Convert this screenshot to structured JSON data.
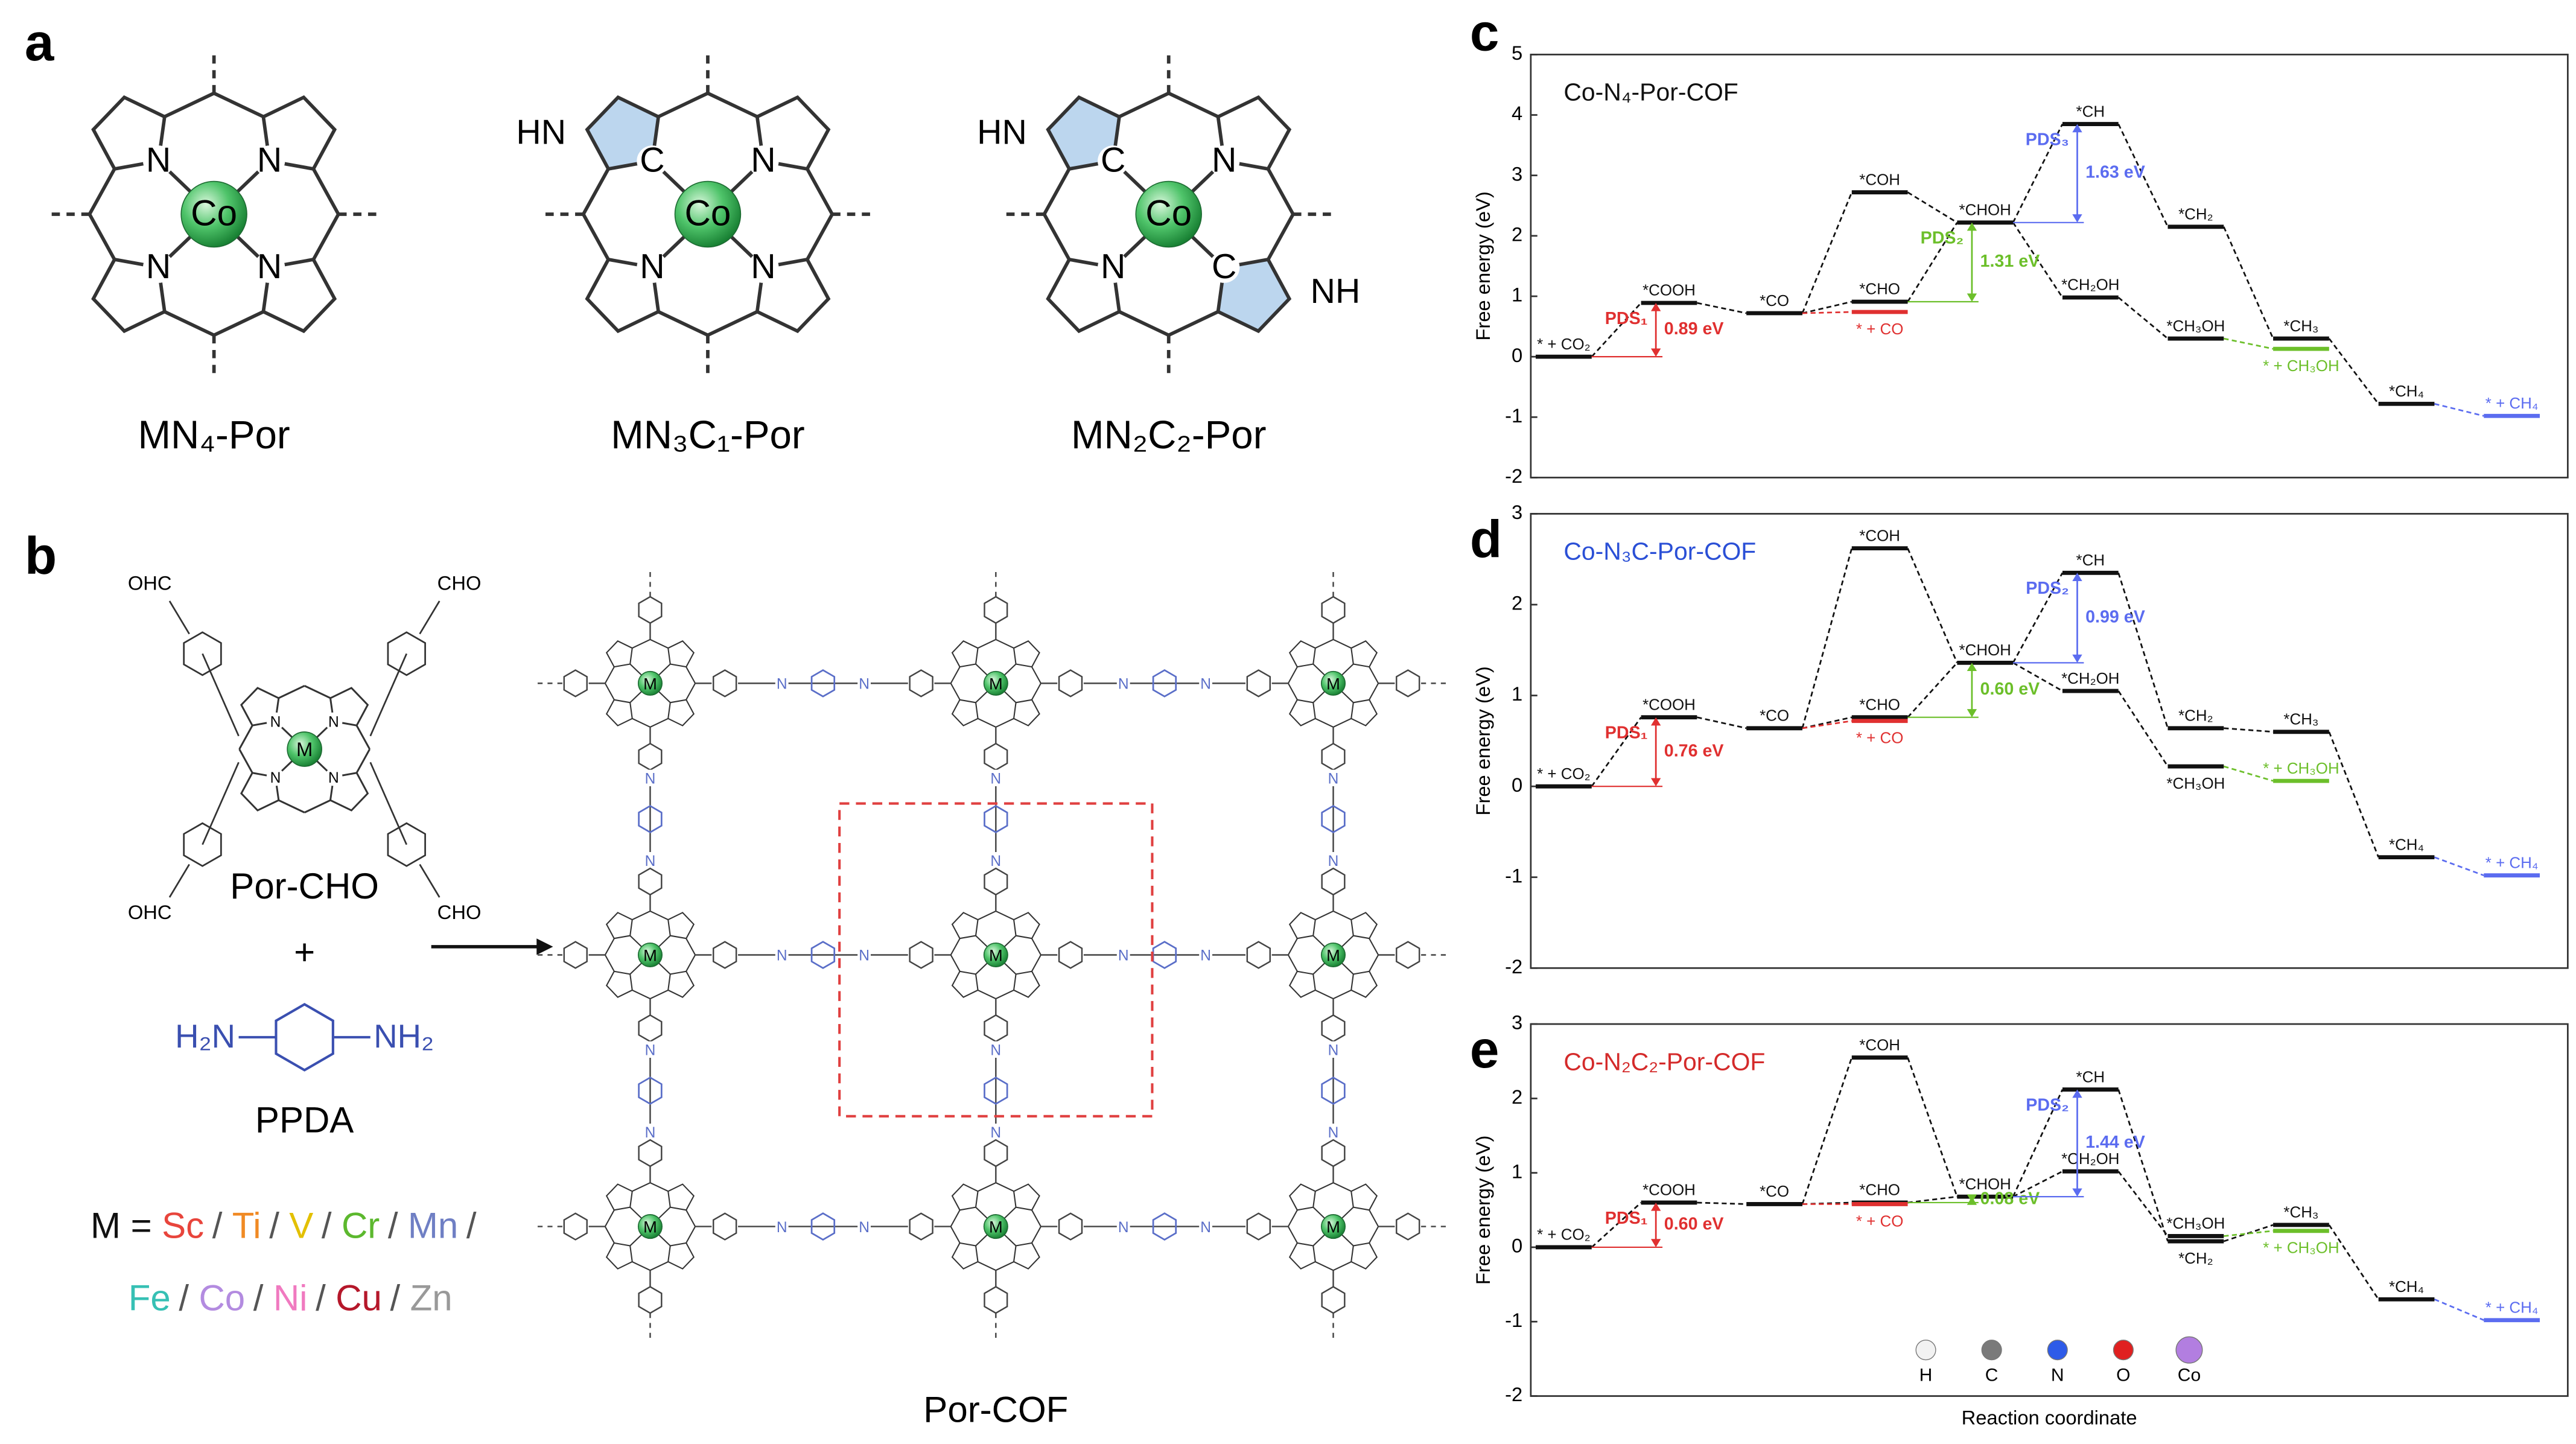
{
  "panel_labels": [
    "a",
    "b",
    "c",
    "d",
    "e"
  ],
  "panel_a": {
    "structures": [
      {
        "caption": "MN₄-Por",
        "center": "Co",
        "atoms": [
          "N",
          "N",
          "N",
          "N"
        ],
        "extras": []
      },
      {
        "caption": "MN₃C₁-Por",
        "center": "Co",
        "atoms": [
          "C",
          "N",
          "N",
          "N"
        ],
        "extras": [
          {
            "label": "HN",
            "corner": 0
          }
        ]
      },
      {
        "caption": "MN₂C₂-Por",
        "center": "Co",
        "atoms": [
          "C",
          "N",
          "N",
          "C"
        ],
        "extras": [
          {
            "label": "HN",
            "corner": 0
          },
          {
            "label": "NH",
            "corner": 3
          }
        ]
      }
    ]
  },
  "panel_b": {
    "monomer": {
      "name": "Por-CHO",
      "center": "M",
      "inner_atoms": [
        "N",
        "N",
        "N",
        "N"
      ],
      "groups": [
        "OHC",
        "CHO",
        "OHC",
        "CHO"
      ]
    },
    "plus": "+",
    "linker": {
      "name": "PPDA",
      "left": "H₂N",
      "right": "NH₂"
    },
    "metals": {
      "prefix": "M =",
      "separator": "/",
      "items": [
        {
          "label": "Sc",
          "color": "#e8453c"
        },
        {
          "label": "Ti",
          "color": "#f08a24"
        },
        {
          "label": "V",
          "color": "#e3c000"
        },
        {
          "label": "Cr",
          "color": "#5cb82e"
        },
        {
          "label": "Mn",
          "color": "#6f7fc4"
        },
        {
          "label": "Fe",
          "color": "#36c0b4"
        },
        {
          "label": "Co",
          "color": "#b38be0"
        },
        {
          "label": "Ni",
          "color": "#f07ac0"
        },
        {
          "label": "Cu",
          "color": "#b5172a"
        },
        {
          "label": "Zn",
          "color": "#999999"
        }
      ]
    },
    "product": {
      "name": "Por-COF",
      "node": "M",
      "linker_atom": "N"
    }
  },
  "chart_data": [
    {
      "type": "energy",
      "title": "Co-N₄-Por-COF",
      "title_color": "#111111",
      "ylabel": "Free energy (eV)",
      "ylim": [
        -2,
        5
      ],
      "yticks": [
        -2,
        -1,
        0,
        1,
        2,
        3,
        4,
        5
      ],
      "levels": [
        {
          "label": "* + CO₂",
          "value": 0,
          "step": 0,
          "color": "#111111"
        },
        {
          "label": "*COOH",
          "value": 0.89,
          "step": 1,
          "color": "#111111"
        },
        {
          "label": "*CO",
          "value": 0.72,
          "step": 2,
          "color": "#111111"
        },
        {
          "label": "*COH",
          "value": 2.72,
          "step": 3,
          "color": "#111111"
        },
        {
          "label": "*CHO",
          "value": 0.91,
          "step": 3,
          "color": "#111111"
        },
        {
          "label": "* + CO",
          "value": 0.74,
          "step": 3,
          "color": "#e03030"
        },
        {
          "label": "*CHOH",
          "value": 2.22,
          "step": 4,
          "color": "#111111"
        },
        {
          "label": "*CH",
          "value": 3.85,
          "step": 5,
          "color": "#111111"
        },
        {
          "label": "*CH₂OH",
          "value": 0.98,
          "step": 5,
          "color": "#111111"
        },
        {
          "label": "*CH₂",
          "value": 2.15,
          "step": 6,
          "color": "#111111"
        },
        {
          "label": "*CH₃OH",
          "value": 0.3,
          "step": 6,
          "color": "#111111"
        },
        {
          "label": "*CH₃",
          "value": 0.3,
          "step": 7,
          "color": "#111111"
        },
        {
          "label": "* + CH₃OH",
          "value": 0.13,
          "step": 7,
          "color": "#6cbf2a"
        },
        {
          "label": "*CH₄",
          "value": -0.78,
          "step": 8,
          "color": "#111111"
        },
        {
          "label": "* + CH₄",
          "value": -0.98,
          "step": 9,
          "color": "#5b6cf0"
        }
      ],
      "links": [
        {
          "from": 0,
          "to": 1
        },
        {
          "from": 1,
          "to": 2
        },
        {
          "from": 2,
          "to": 3
        },
        {
          "from": 3,
          "to": 6
        },
        {
          "from": 2,
          "to": 4
        },
        {
          "from": 2,
          "to": 5
        },
        {
          "from": 4,
          "to": 6
        },
        {
          "from": 6,
          "to": 7
        },
        {
          "from": 7,
          "to": 9
        },
        {
          "from": 9,
          "to": 11
        },
        {
          "from": 11,
          "to": 13
        },
        {
          "from": 13,
          "to": 14
        },
        {
          "from": 6,
          "to": 8
        },
        {
          "from": 8,
          "to": 10
        },
        {
          "from": 10,
          "to": 12
        }
      ],
      "annotations": [
        {
          "label": "PDS₁",
          "value_label": "0.89 eV",
          "from": 0,
          "to": 1,
          "color": "#e03030"
        },
        {
          "label": "PDS₂",
          "value_label": "1.31 eV",
          "from": 4,
          "to": 6,
          "color": "#6cbf2a"
        },
        {
          "label": "PDS₃",
          "value_label": "1.63 eV",
          "from": 6,
          "to": 7,
          "color": "#5b6cf0"
        }
      ]
    },
    {
      "type": "energy",
      "title": "Co-N₃C-Por-COF",
      "title_color": "#2a4fd6",
      "ylabel": "Free energy (eV)",
      "ylim": [
        -2,
        3
      ],
      "yticks": [
        -2,
        -1,
        0,
        1,
        2,
        3
      ],
      "levels": [
        {
          "label": "* + CO₂",
          "value": 0,
          "step": 0,
          "color": "#111111"
        },
        {
          "label": "*COOH",
          "value": 0.76,
          "step": 1,
          "color": "#111111"
        },
        {
          "label": "*CO",
          "value": 0.64,
          "step": 2,
          "color": "#111111"
        },
        {
          "label": "*COH",
          "value": 2.62,
          "step": 3,
          "color": "#111111"
        },
        {
          "label": "*CHO",
          "value": 0.76,
          "step": 3,
          "color": "#111111"
        },
        {
          "label": "* + CO",
          "value": 0.72,
          "step": 3,
          "color": "#e03030"
        },
        {
          "label": "*CHOH",
          "value": 1.36,
          "step": 4,
          "color": "#111111"
        },
        {
          "label": "*CH",
          "value": 2.35,
          "step": 5,
          "color": "#111111"
        },
        {
          "label": "*CH₂OH",
          "value": 1.05,
          "step": 5,
          "color": "#111111"
        },
        {
          "label": "*CH₂",
          "value": 0.64,
          "step": 6,
          "color": "#111111"
        },
        {
          "label": "*CH₃OH",
          "value": 0.22,
          "step": 6,
          "color": "#111111"
        },
        {
          "label": "*CH₃",
          "value": 0.6,
          "step": 7,
          "color": "#111111"
        },
        {
          "label": "* + CH₃OH",
          "value": 0.06,
          "step": 7,
          "color": "#6cbf2a"
        },
        {
          "label": "*CH₄",
          "value": -0.78,
          "step": 8,
          "color": "#111111"
        },
        {
          "label": "* + CH₄",
          "value": -0.98,
          "step": 9,
          "color": "#5b6cf0"
        }
      ],
      "links": [
        {
          "from": 0,
          "to": 1
        },
        {
          "from": 1,
          "to": 2
        },
        {
          "from": 2,
          "to": 3
        },
        {
          "from": 3,
          "to": 6
        },
        {
          "from": 2,
          "to": 4
        },
        {
          "from": 2,
          "to": 5
        },
        {
          "from": 4,
          "to": 6
        },
        {
          "from": 6,
          "to": 7
        },
        {
          "from": 7,
          "to": 9
        },
        {
          "from": 9,
          "to": 11
        },
        {
          "from": 11,
          "to": 13
        },
        {
          "from": 13,
          "to": 14
        },
        {
          "from": 6,
          "to": 8
        },
        {
          "from": 8,
          "to": 10
        },
        {
          "from": 10,
          "to": 12
        }
      ],
      "annotations": [
        {
          "label": "PDS₁",
          "value_label": "0.76 eV",
          "from": 0,
          "to": 1,
          "color": "#e03030"
        },
        {
          "value_label": "0.60 eV",
          "from": 4,
          "to": 6,
          "color": "#6cbf2a"
        },
        {
          "label": "PDS₂",
          "value_label": "0.99 eV",
          "from": 6,
          "to": 7,
          "color": "#5b6cf0"
        }
      ]
    },
    {
      "type": "energy",
      "title": "Co-N₂C₂-Por-COF",
      "title_color": "#d42a2a",
      "ylabel": "Free energy (eV)",
      "xlabel": "Reaction coordinate",
      "ylim": [
        -2,
        3
      ],
      "yticks": [
        -2,
        -1,
        0,
        1,
        2,
        3
      ],
      "levels": [
        {
          "label": "* + CO₂",
          "value": 0,
          "step": 0,
          "color": "#111111"
        },
        {
          "label": "*COOH",
          "value": 0.6,
          "step": 1,
          "color": "#111111"
        },
        {
          "label": "*CO",
          "value": 0.58,
          "step": 2,
          "color": "#111111"
        },
        {
          "label": "*COH",
          "value": 2.55,
          "step": 3,
          "color": "#111111"
        },
        {
          "label": "*CHO",
          "value": 0.6,
          "step": 3,
          "color": "#111111"
        },
        {
          "label": "* + CO",
          "value": 0.58,
          "step": 3,
          "color": "#e03030"
        },
        {
          "label": "*CHOH",
          "value": 0.68,
          "step": 4,
          "color": "#111111"
        },
        {
          "label": "*CH",
          "value": 2.12,
          "step": 5,
          "color": "#111111"
        },
        {
          "label": "*CH₂OH",
          "value": 1.02,
          "step": 5,
          "color": "#111111"
        },
        {
          "label": "*CH₂",
          "value": 0.08,
          "step": 6,
          "color": "#111111"
        },
        {
          "label": "*CH₃OH",
          "value": 0.15,
          "step": 6,
          "color": "#111111"
        },
        {
          "label": "*CH₃",
          "value": 0.3,
          "step": 7,
          "color": "#111111"
        },
        {
          "label": "* + CH₃OH",
          "value": 0.22,
          "step": 7,
          "color": "#6cbf2a"
        },
        {
          "label": "*CH₄",
          "value": -0.7,
          "step": 8,
          "color": "#111111"
        },
        {
          "label": "* + CH₄",
          "value": -0.98,
          "step": 9,
          "color": "#5b6cf0"
        }
      ],
      "links": [
        {
          "from": 0,
          "to": 1
        },
        {
          "from": 1,
          "to": 2
        },
        {
          "from": 2,
          "to": 3
        },
        {
          "from": 3,
          "to": 6
        },
        {
          "from": 2,
          "to": 4
        },
        {
          "from": 2,
          "to": 5
        },
        {
          "from": 4,
          "to": 6
        },
        {
          "from": 6,
          "to": 7
        },
        {
          "from": 7,
          "to": 9
        },
        {
          "from": 9,
          "to": 11
        },
        {
          "from": 11,
          "to": 13
        },
        {
          "from": 13,
          "to": 14
        },
        {
          "from": 6,
          "to": 8
        },
        {
          "from": 8,
          "to": 10
        },
        {
          "from": 10,
          "to": 12
        }
      ],
      "annotations": [
        {
          "label": "PDS₁",
          "value_label": "0.60 eV",
          "from": 0,
          "to": 1,
          "color": "#e03030"
        },
        {
          "value_label": "0.08 eV",
          "from": 4,
          "to": 6,
          "color": "#6cbf2a"
        },
        {
          "label": "PDS₂",
          "value_label": "1.44 eV",
          "from": 6,
          "to": 7,
          "color": "#5b6cf0"
        }
      ],
      "atom_legend": [
        {
          "label": "H",
          "color": "#f2f2f2"
        },
        {
          "label": "C",
          "color": "#7a7a7a"
        },
        {
          "label": "N",
          "color": "#2e5be8"
        },
        {
          "label": "O",
          "color": "#e02020"
        },
        {
          "label": "Co",
          "color": "#b27ee0"
        }
      ]
    }
  ]
}
